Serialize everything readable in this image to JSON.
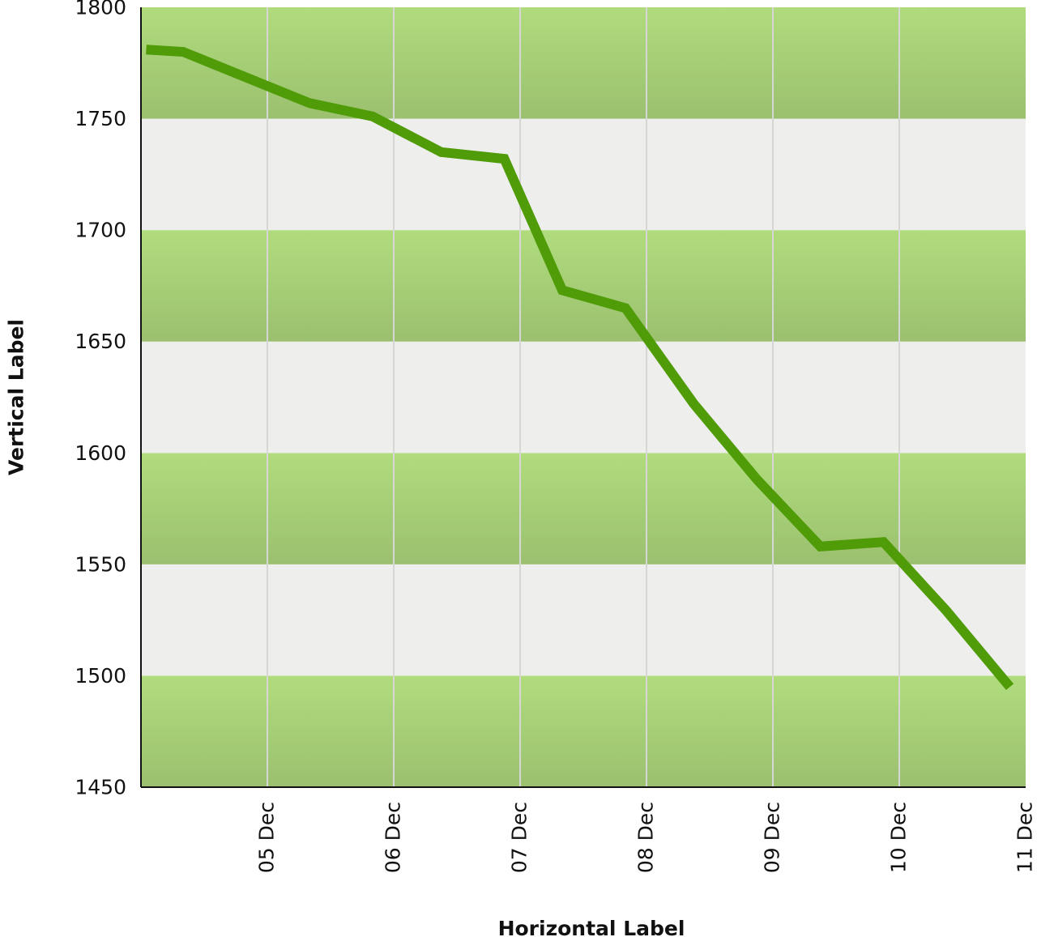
{
  "chart_data": {
    "type": "line",
    "title": "",
    "xlabel": "Horizontal Label",
    "ylabel": "Vertical Label",
    "ylim": [
      1450,
      1800
    ],
    "yticks": [
      1450,
      1500,
      1550,
      1600,
      1650,
      1700,
      1750,
      1800
    ],
    "xlim": [
      "2023-12-04T00:00",
      "2023-12-11T00:00"
    ],
    "xticks": [
      {
        "date": "2023-12-05T00:00",
        "label": "05 Dec"
      },
      {
        "date": "2023-12-06T00:00",
        "label": "06 Dec"
      },
      {
        "date": "2023-12-07T00:00",
        "label": "07 Dec"
      },
      {
        "date": "2023-12-08T00:00",
        "label": "08 Dec"
      },
      {
        "date": "2023-12-09T00:00",
        "label": "09 Dec"
      },
      {
        "date": "2023-12-10T00:00",
        "label": "10 Dec"
      },
      {
        "date": "2023-12-11T00:00",
        "label": "11 Dec"
      }
    ],
    "grid": "vertical",
    "colors": {
      "line": "#4f9b08",
      "band_top": "#b0dc7d",
      "band_bottom": "#9bc06f",
      "band_alt": "#eeeeec",
      "grid": "#d6d6d6",
      "axis": "#111111"
    },
    "series": [
      {
        "points": [
          {
            "x": "2023-12-04T01:00",
            "y": 1781
          },
          {
            "x": "2023-12-04T08:00",
            "y": 1780
          },
          {
            "x": "2023-12-05T08:00",
            "y": 1757
          },
          {
            "x": "2023-12-05T20:00",
            "y": 1751
          },
          {
            "x": "2023-12-06T09:00",
            "y": 1735
          },
          {
            "x": "2023-12-06T21:00",
            "y": 1732
          },
          {
            "x": "2023-12-07T08:00",
            "y": 1673
          },
          {
            "x": "2023-12-07T20:00",
            "y": 1665
          },
          {
            "x": "2023-12-08T09:00",
            "y": 1622
          },
          {
            "x": "2023-12-08T21:00",
            "y": 1588
          },
          {
            "x": "2023-12-09T09:00",
            "y": 1558
          },
          {
            "x": "2023-12-09T21:00",
            "y": 1560
          },
          {
            "x": "2023-12-10T09:00",
            "y": 1529
          },
          {
            "x": "2023-12-10T21:00",
            "y": 1495
          }
        ]
      }
    ]
  }
}
